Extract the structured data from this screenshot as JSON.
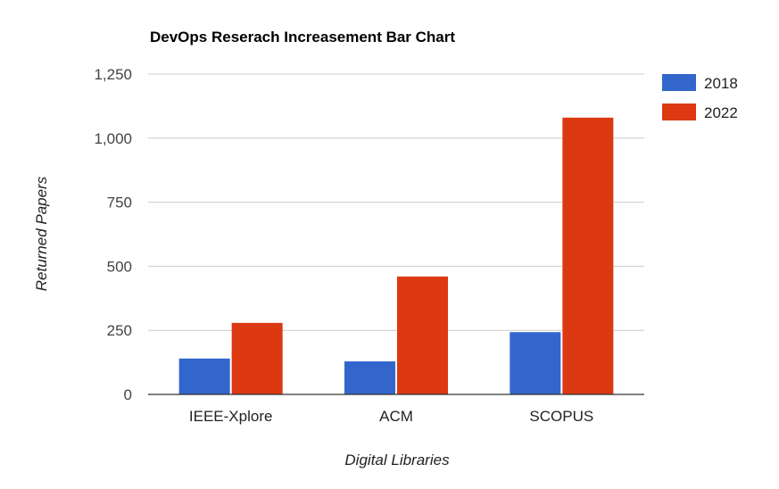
{
  "chart_data": {
    "type": "bar",
    "title": "DevOps Reserach Increasement Bar Chart",
    "xlabel": "Digital Libraries",
    "ylabel": "Returned Papers",
    "categories": [
      "IEEE-Xplore",
      "ACM",
      "SCOPUS"
    ],
    "series": [
      {
        "name": "2018",
        "values": [
          140,
          129,
          243
        ],
        "color": "#3366cc"
      },
      {
        "name": "2022",
        "values": [
          279,
          460,
          1080
        ],
        "color": "#dc3912"
      }
    ],
    "ylim": [
      0,
      1250
    ],
    "yticks": [
      0,
      250,
      500,
      750,
      1000,
      1250
    ],
    "ytick_labels": [
      "0",
      "250",
      "500",
      "750",
      "1,000",
      "1,250"
    ],
    "grid": true,
    "legend_position": "right"
  }
}
